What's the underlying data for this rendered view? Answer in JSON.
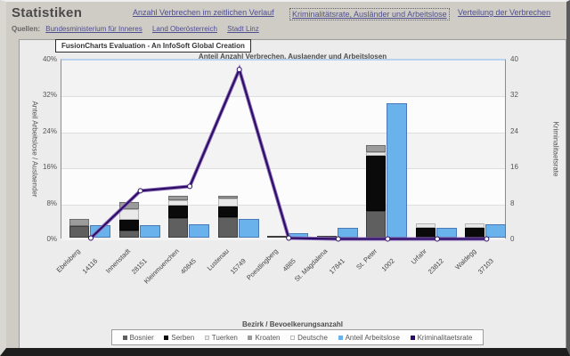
{
  "window": {
    "title": "Statistiken"
  },
  "nav": {
    "links": [
      {
        "label": "Anzahl Verbrechen im zeitlichen Verlauf",
        "active": false
      },
      {
        "label": "Kriminalitätsrate, Ausländer und Arbeitslose",
        "active": true
      },
      {
        "label": "Verteilung der Verbrechen",
        "active": false
      }
    ]
  },
  "sources": {
    "label": "Quellen:",
    "links": [
      {
        "label": "Bundesministerium für Inneres"
      },
      {
        "label": "Land Oberösterreich"
      },
      {
        "label": "Stadt Linz"
      }
    ]
  },
  "chart_brand": "FusionCharts Evaluation - An InfoSoft Global Creation",
  "chart_data": {
    "type": "bar",
    "subtype": "stacked-bars + bar + line combo, dual y-axis",
    "title": "Anteil Anzahl Verbrechen, Auslaender und Arbeitslosen",
    "xlabel": "Bezirk / Bevoelkerungsanzahl",
    "ylabel_left": "Anteil Arbeitslose / Auslaender",
    "ylabel_right": "Kriminalitaetsrate",
    "ylim_left": [
      0,
      40
    ],
    "ylim_right": [
      0,
      40
    ],
    "yticks_left": [
      "0%",
      "8%",
      "16%",
      "24%",
      "32%",
      "40%"
    ],
    "yticks_right": [
      "0",
      "8",
      "16",
      "24",
      "32",
      "40"
    ],
    "grid": true,
    "legend_position": "bottom",
    "categories": [
      {
        "name": "Ebelsberg",
        "population": "14116"
      },
      {
        "name": "Innenstadt",
        "population": "28151"
      },
      {
        "name": "Kleinmuenchen",
        "population": "40845"
      },
      {
        "name": "Lustenau",
        "population": "15749"
      },
      {
        "name": "Poestlingberg",
        "population": "4885"
      },
      {
        "name": "St. Magdalena",
        "population": "17841"
      },
      {
        "name": "St. Peter",
        "population": "1002"
      },
      {
        "name": "Urfahr",
        "population": "23812"
      },
      {
        "name": "Waldegg",
        "population": "37103"
      }
    ],
    "stack_series": [
      {
        "name": "Bosnier",
        "color": "#5f5f5f",
        "border": "#3c3c3c",
        "values": [
          2.6,
          1.6,
          4.3,
          4.6,
          0.2,
          0.3,
          6.0,
          0,
          0
        ]
      },
      {
        "name": "Serben",
        "color": "#0a0a0a",
        "border": "#000000",
        "values": [
          0,
          2.4,
          2.9,
          2.4,
          0,
          0,
          12.2,
          2.1,
          2.1
        ]
      },
      {
        "name": "Tuerken",
        "color": "#e9e9e9",
        "border": "#b5b5b5",
        "values": [
          0,
          2.4,
          1.1,
          1.8,
          0,
          0,
          0.9,
          1.0,
          1.0
        ]
      },
      {
        "name": "Kroaten",
        "color": "#9b9b9b",
        "border": "#6e6e6e",
        "values": [
          1.5,
          1.6,
          1.0,
          0.6,
          0,
          0,
          1.4,
          0,
          0
        ]
      },
      {
        "name": "Deutsche",
        "color": "#ffffff",
        "border": "#c8c8c8",
        "values": [
          0,
          0,
          0,
          0,
          0,
          0,
          0,
          0,
          0
        ]
      }
    ],
    "bar_series": {
      "name": "Anteil Arbeitslose",
      "color": "#6ab2ec",
      "border": "#4a7ab5",
      "values": [
        2.7,
        2.7,
        3.0,
        4.1,
        1.0,
        2.1,
        30.0,
        2.1,
        3.0
      ]
    },
    "line_series": {
      "name": "Kriminalitaetsrate",
      "color": "#2b0b63",
      "halo": "#8a6bb8",
      "values": [
        0.5,
        11,
        12,
        38,
        0.5,
        0.3,
        0.3,
        0.3,
        0.3
      ]
    },
    "legend": [
      {
        "label": "Bosnier",
        "color": "#5f5f5f"
      },
      {
        "label": "Serben",
        "color": "#0a0a0a"
      },
      {
        "label": "Tuerken",
        "color": "#e9e9e9"
      },
      {
        "label": "Kroaten",
        "color": "#9b9b9b"
      },
      {
        "label": "Deutsche",
        "color": "#ffffff"
      },
      {
        "label": "Anteil Arbeitslose",
        "color": "#6ab2ec"
      },
      {
        "label": "Kriminalitaetsrate",
        "color": "#2b0b63"
      }
    ]
  }
}
